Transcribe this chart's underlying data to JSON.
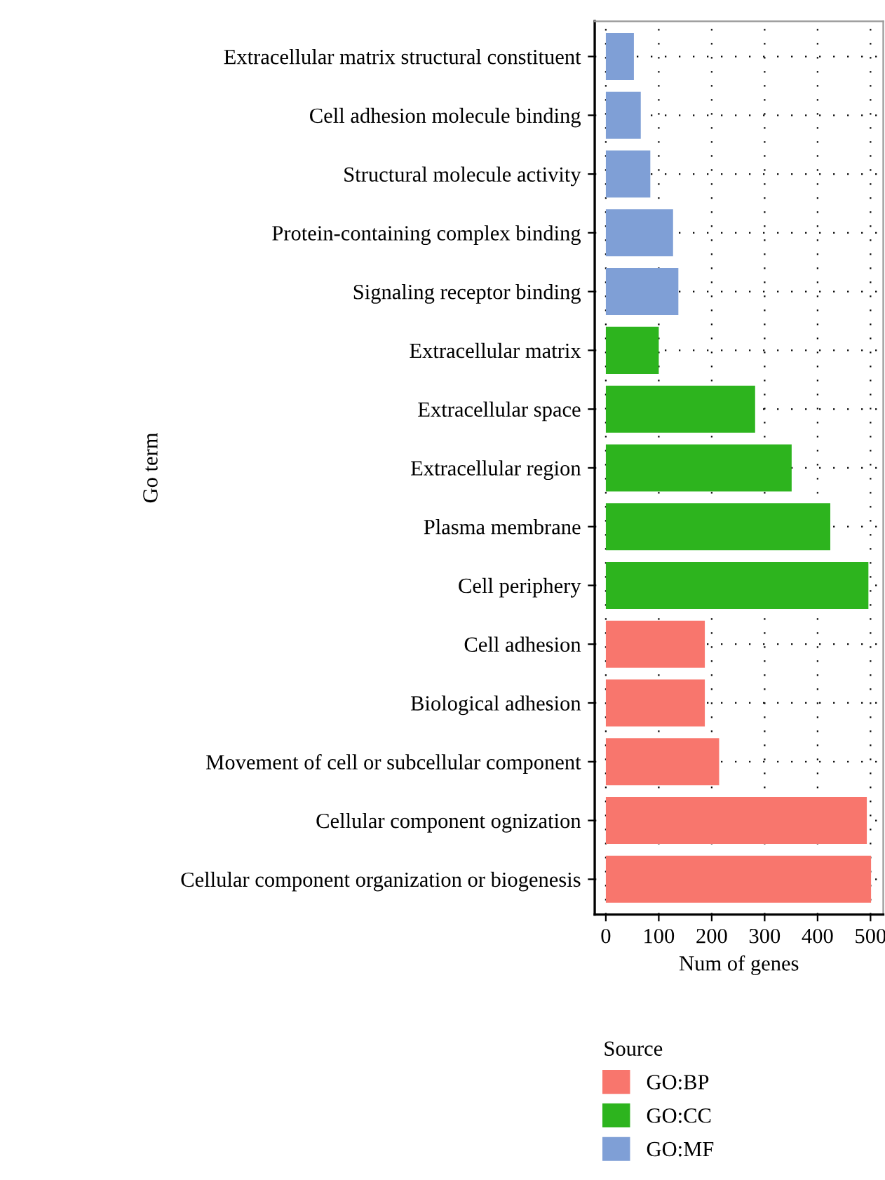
{
  "chart_data": {
    "type": "bar",
    "orientation": "horizontal",
    "xlabel": "Num of genes",
    "ylabel": "Go term",
    "legend_title": "Source",
    "categories": [
      "Extracellular matrix structural constituent",
      "Cell adhesion molecule binding",
      "Structural molecule activity",
      "Protein-containing complex binding",
      "Signaling receptor binding",
      "Extracellular matrix",
      "Extracellular space",
      "Extracellular region",
      "Plasma membrane",
      "Cell periphery",
      "Cell adhesion",
      "Biological adhesion",
      "Movement of cell or subcellular component",
      "Cellular component ognization",
      "Cellular component organization or biogenesis"
    ],
    "series": [
      {
        "name": "GO:BP",
        "color": "#f8766d",
        "values": [
          null,
          null,
          null,
          null,
          null,
          null,
          null,
          null,
          null,
          null,
          187,
          187,
          214,
          493,
          501
        ]
      },
      {
        "name": "GO:CC",
        "color": "#2db41e",
        "values": [
          null,
          null,
          null,
          null,
          null,
          100,
          282,
          351,
          424,
          496,
          null,
          null,
          null,
          null,
          null
        ]
      },
      {
        "name": "GO:MF",
        "color": "#7f9fd6",
        "values": [
          53,
          66,
          84,
          127,
          137,
          null,
          null,
          null,
          null,
          null,
          null,
          null,
          null,
          null,
          null
        ]
      }
    ],
    "xlim": [
      -21,
      524
    ],
    "xticks": [
      0,
      100,
      200,
      300,
      400,
      500
    ],
    "grid": true,
    "legend": "bottom left"
  }
}
